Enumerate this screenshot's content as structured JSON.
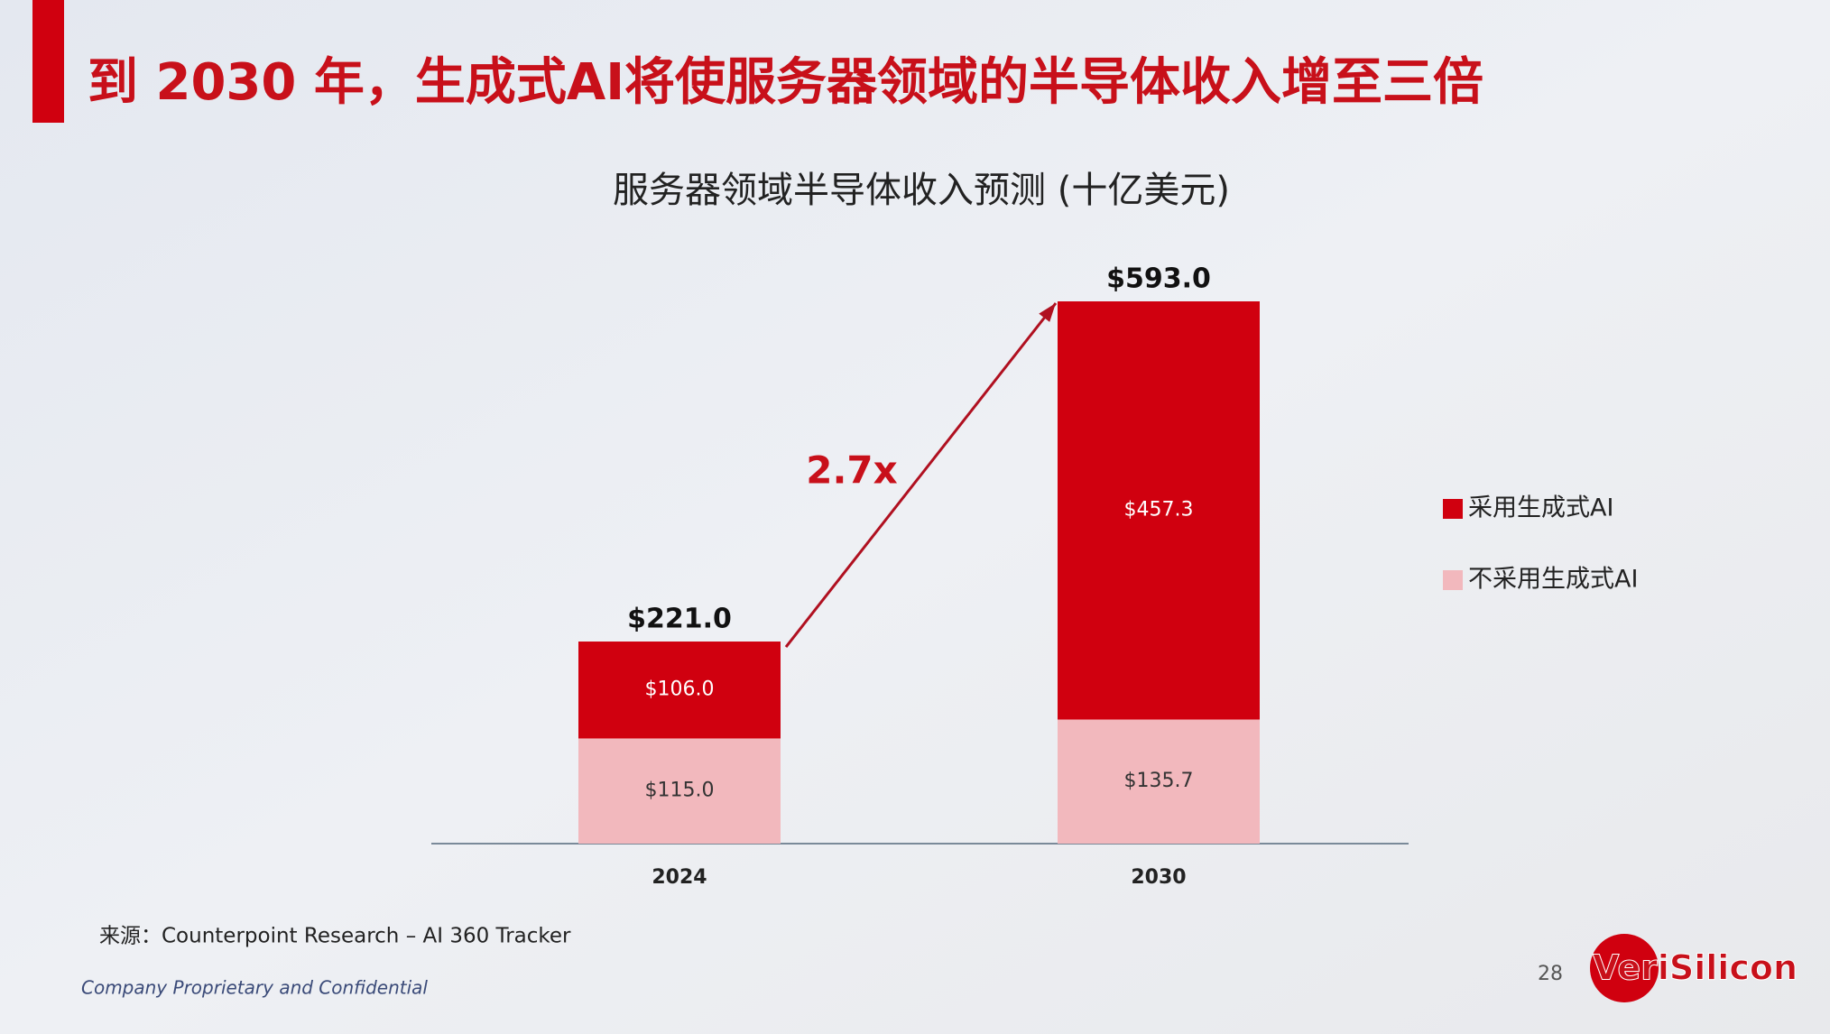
{
  "title": "到 2030 年，生成式AI将使服务器领域的半导体收入增至三倍",
  "chart_data": {
    "type": "stacked_bar",
    "title": "服务器领域半导体收入预测 (十亿美元)",
    "categories": [
      "2024",
      "2030"
    ],
    "series": [
      {
        "name": "不采用生成式AI",
        "color": "#f2b8bd",
        "values": [
          115.0,
          135.7
        ],
        "value_labels": [
          "$115.0",
          "$135.7"
        ]
      },
      {
        "name": "采用生成式AI",
        "color": "#d0000f",
        "values": [
          106.0,
          457.3
        ],
        "value_labels": [
          "$106.0",
          "$457.3"
        ]
      }
    ],
    "totals": {
      "values": [
        221.0,
        593.0
      ],
      "value_labels": [
        "$221.0",
        "$593.0"
      ]
    },
    "annotation": "2.7x"
  },
  "source": "来源：Counterpoint Research – AI 360 Tracker",
  "footer": "Company Proprietary and Confidential",
  "page_number": "28",
  "logo": "VeriSilicon"
}
